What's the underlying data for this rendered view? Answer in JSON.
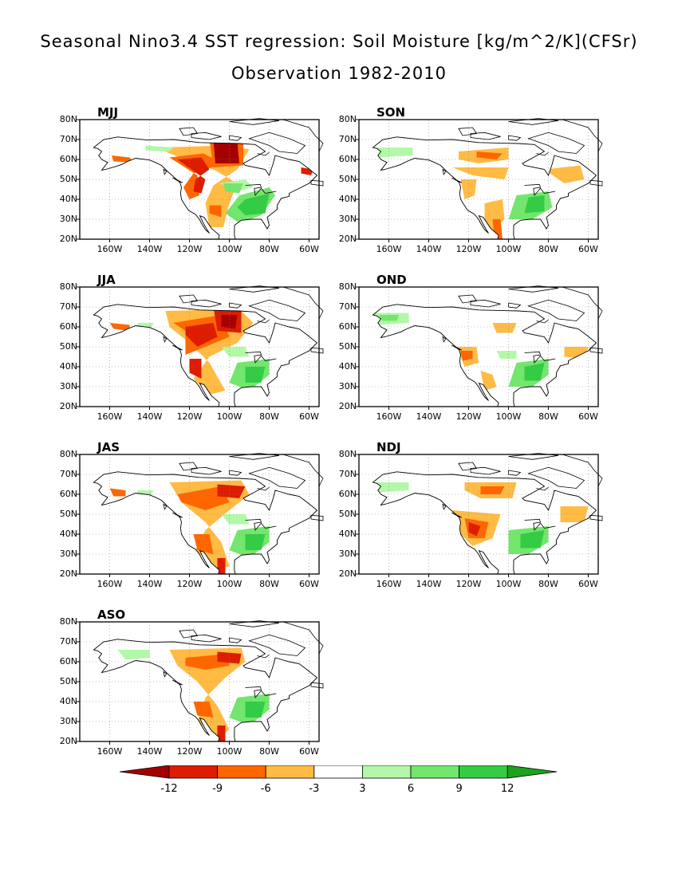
{
  "title_line1": "Seasonal Nino3.4 SST regression: Soil Moisture [kg/m^2/K](CFSr)",
  "title_line2": "Observation 1982-2010",
  "lat_ticks": [
    "80N",
    "70N",
    "60N",
    "50N",
    "40N",
    "30N",
    "20N"
  ],
  "lon_ticks": [
    "160W",
    "140W",
    "120W",
    "100W",
    "80W",
    "60W"
  ],
  "panels": [
    {
      "label": "MJJ"
    },
    {
      "label": "SON"
    },
    {
      "label": "JJA"
    },
    {
      "label": "OND"
    },
    {
      "label": "JAS"
    },
    {
      "label": "NDJ"
    },
    {
      "label": "ASO"
    }
  ],
  "colorbar": {
    "levels": [
      "-12",
      "-9",
      "-6",
      "-3",
      "3",
      "6",
      "9",
      "12"
    ],
    "colors": [
      "#a50000",
      "#dd1c00",
      "#ff6600",
      "#ffbb44",
      "#ffffff",
      "#b2f8a8",
      "#73e66d",
      "#33cc44",
      "#1ca21c"
    ]
  }
}
